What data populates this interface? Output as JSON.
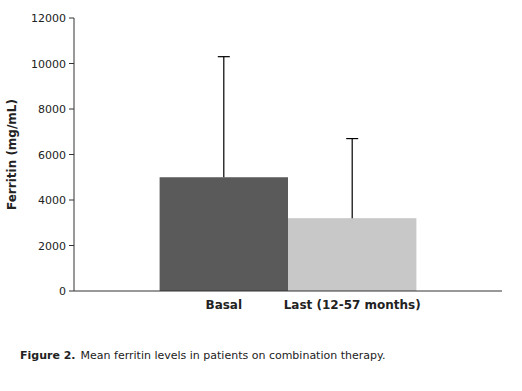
{
  "chart_data": {
    "type": "bar",
    "categories": [
      "Basal",
      "Last (12-57 months)"
    ],
    "values": [
      5000,
      3200
    ],
    "error_upper": [
      5300,
      3500
    ],
    "colors": [
      "#5a5a5a",
      "#c8c8c8"
    ],
    "ylabel": "Ferritin (mg/mL)",
    "ylim": [
      0,
      12000
    ],
    "yticks": [
      0,
      2000,
      4000,
      6000,
      8000,
      10000,
      12000
    ],
    "grid": false,
    "caption": [
      "Figure 2.",
      "Mean ferritin levels in patients on combination therapy."
    ]
  }
}
